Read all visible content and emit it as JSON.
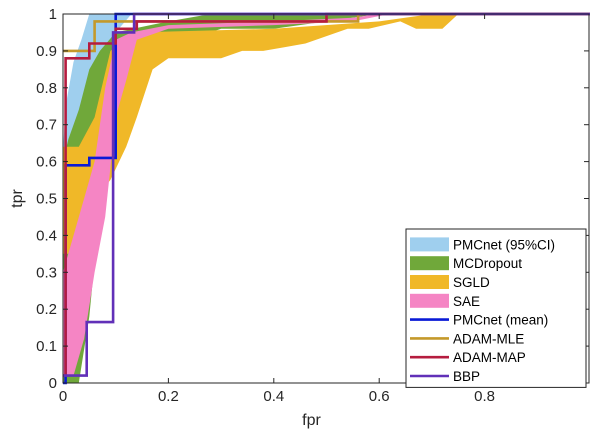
{
  "chart_data": {
    "type": "line",
    "title": "",
    "xlabel": "fpr",
    "ylabel": "tpr",
    "xlim": [
      0,
      1
    ],
    "ylim": [
      0,
      1
    ],
    "grid": false,
    "legend_position": "bottom-right",
    "x_ticks": [
      "0",
      "0.2",
      "0.4",
      "0.6",
      "0.8"
    ],
    "y_ticks": [
      "0",
      "0.1",
      "0.2",
      "0.3",
      "0.4",
      "0.5",
      "0.6",
      "0.7",
      "0.8",
      "0.9",
      "1"
    ],
    "bands": [
      {
        "name": "PMCnet (95%CI)",
        "color": "#9fcfee",
        "upper": [
          [
            0,
            0.63
          ],
          [
            0.005,
            0.75
          ],
          [
            0.02,
            0.87
          ],
          [
            0.035,
            0.93
          ],
          [
            0.05,
            1.0
          ],
          [
            1.0,
            1.0
          ]
        ],
        "lower": [
          [
            1.0,
            1.0
          ],
          [
            0.13,
            1.0
          ],
          [
            0.1,
            0.95
          ],
          [
            0.09,
            0.9
          ],
          [
            0.065,
            0.84
          ],
          [
            0.045,
            0.6
          ],
          [
            0.02,
            0.37
          ],
          [
            0.01,
            0.2
          ],
          [
            0,
            0
          ]
        ]
      },
      {
        "name": "MCDropout",
        "color": "#70a83a",
        "upper": [
          [
            0,
            0.6
          ],
          [
            0.01,
            0.66
          ],
          [
            0.03,
            0.74
          ],
          [
            0.05,
            0.85
          ],
          [
            0.07,
            0.9
          ],
          [
            0.1,
            0.95
          ],
          [
            0.2,
            0.98
          ],
          [
            0.28,
            1.0
          ],
          [
            1.0,
            1.0
          ]
        ],
        "lower": [
          [
            1.0,
            1.0
          ],
          [
            0.6,
            1.0
          ],
          [
            0.5,
            0.98
          ],
          [
            0.4,
            0.96
          ],
          [
            0.3,
            0.96
          ],
          [
            0.26,
            0.94
          ],
          [
            0.23,
            0.92
          ],
          [
            0.2,
            0.91
          ],
          [
            0.18,
            0.9
          ],
          [
            0.16,
            0.89
          ],
          [
            0.14,
            0.87
          ],
          [
            0.12,
            0.84
          ],
          [
            0.1,
            0.8
          ],
          [
            0.08,
            0.63
          ],
          [
            0.05,
            0.18
          ],
          [
            0.03,
            0.0
          ],
          [
            0,
            0
          ]
        ]
      },
      {
        "name": "SGLD",
        "color": "#f0b828",
        "upper": [
          [
            0,
            0.64
          ],
          [
            0.03,
            0.64
          ],
          [
            0.06,
            0.72
          ],
          [
            0.09,
            0.9
          ],
          [
            0.12,
            0.93
          ],
          [
            0.14,
            0.95
          ],
          [
            0.4,
            0.96
          ],
          [
            0.6,
            0.98
          ],
          [
            0.7,
            1.0
          ],
          [
            1.0,
            1.0
          ]
        ],
        "lower": [
          [
            1.0,
            1.0
          ],
          [
            0.8,
            1.0
          ],
          [
            0.75,
            1.0
          ],
          [
            0.72,
            0.96
          ],
          [
            0.67,
            0.96
          ],
          [
            0.64,
            0.98
          ],
          [
            0.58,
            0.96
          ],
          [
            0.54,
            0.96
          ],
          [
            0.5,
            0.94
          ],
          [
            0.46,
            0.92
          ],
          [
            0.42,
            0.91
          ],
          [
            0.38,
            0.9
          ],
          [
            0.34,
            0.9
          ],
          [
            0.3,
            0.88
          ],
          [
            0.26,
            0.88
          ],
          [
            0.24,
            0.88
          ],
          [
            0.2,
            0.88
          ],
          [
            0.17,
            0.85
          ],
          [
            0.14,
            0.72
          ],
          [
            0.12,
            0.64
          ],
          [
            0.09,
            0.55
          ],
          [
            0.06,
            0.5
          ],
          [
            0.04,
            0.38
          ],
          [
            0.02,
            0.35
          ],
          [
            0,
            0.35
          ]
        ]
      },
      {
        "name": "SAE",
        "color": "#f585c4",
        "upper": [
          [
            0,
            0.3
          ],
          [
            0.04,
            0.5
          ],
          [
            0.06,
            0.6
          ],
          [
            0.08,
            0.8
          ],
          [
            0.1,
            0.93
          ],
          [
            0.13,
            0.95
          ],
          [
            0.2,
            0.97
          ],
          [
            0.4,
            0.98
          ],
          [
            0.55,
            0.99
          ],
          [
            0.6,
            1.0
          ],
          [
            1.0,
            1.0
          ]
        ],
        "lower": [
          [
            1.0,
            1.0
          ],
          [
            0.62,
            1.0
          ],
          [
            0.55,
            0.98
          ],
          [
            0.4,
            0.97
          ],
          [
            0.2,
            0.96
          ],
          [
            0.14,
            0.93
          ],
          [
            0.12,
            0.82
          ],
          [
            0.1,
            0.72
          ],
          [
            0.08,
            0.45
          ],
          [
            0.06,
            0.3
          ],
          [
            0.04,
            0.12
          ],
          [
            0.02,
            0.02
          ],
          [
            0,
            0.02
          ]
        ]
      }
    ],
    "series": [
      {
        "name": "PMCnet (mean)",
        "color": "#0a1ad6",
        "x": [
          0,
          0.005,
          0.005,
          0.05,
          0.05,
          0.1,
          0.1,
          0.13,
          0.13,
          1.0
        ],
        "y": [
          0,
          0,
          0.59,
          0.59,
          0.61,
          0.61,
          1.0,
          1.0,
          1.0,
          1.0
        ]
      },
      {
        "name": "ADAM-MLE",
        "color": "#c4992a",
        "x": [
          0,
          0.005,
          0.005,
          0.06,
          0.06,
          0.56,
          0.56,
          1.0
        ],
        "y": [
          0.9,
          0.9,
          0.9,
          0.9,
          0.98,
          0.98,
          1.0,
          1.0
        ]
      },
      {
        "name": "ADAM-MAP",
        "color": "#b51c3f",
        "x": [
          0,
          0.005,
          0.005,
          0.05,
          0.05,
          0.1,
          0.1,
          0.14,
          0.14,
          0.5,
          0.5,
          1.0
        ],
        "y": [
          0.02,
          0.02,
          0.88,
          0.88,
          0.92,
          0.92,
          0.96,
          0.96,
          0.98,
          0.98,
          1.0,
          1.0
        ]
      },
      {
        "name": "BBP",
        "color": "#6130b8",
        "x": [
          0,
          0.045,
          0.045,
          0.095,
          0.095,
          0.135,
          0.135,
          1.0
        ],
        "y": [
          0.02,
          0.02,
          0.165,
          0.165,
          0.95,
          0.95,
          1.0,
          1.0
        ]
      }
    ]
  }
}
